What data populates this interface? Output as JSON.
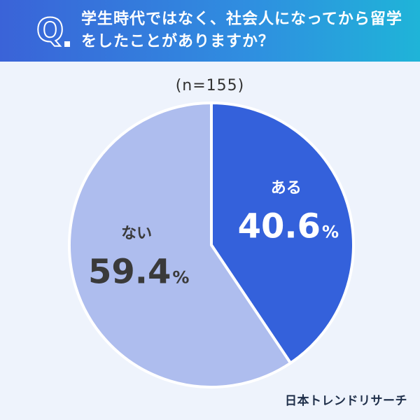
{
  "header": {
    "q_mark": "Q",
    "question": "学生時代ではなく、社会人になってから留学をしたことがありますか？"
  },
  "chart_data": {
    "type": "pie",
    "sample_label": "(n=155)",
    "slices": [
      {
        "label": "ある",
        "value": 40.6,
        "display": "40.6",
        "unit": "%",
        "color": "#3461db"
      },
      {
        "label": "ない",
        "value": 59.4,
        "display": "59.4",
        "unit": "%",
        "color": "#aebdee"
      }
    ]
  },
  "footer": {
    "brand": "日本トレンドリサーチ"
  }
}
